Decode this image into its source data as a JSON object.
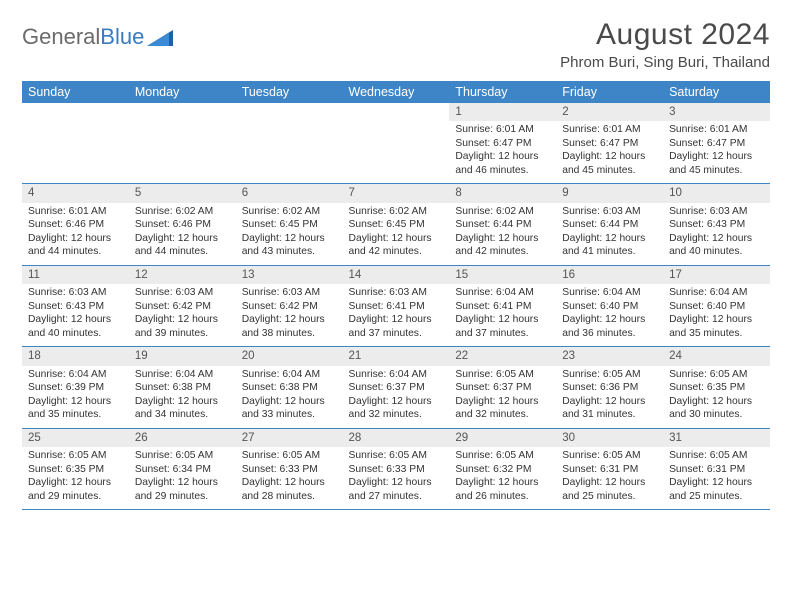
{
  "brand": {
    "part1": "General",
    "part2": "Blue"
  },
  "title": "August 2024",
  "location": "Phrom Buri, Sing Buri, Thailand",
  "dayHeaders": [
    "Sunday",
    "Monday",
    "Tuesday",
    "Wednesday",
    "Thursday",
    "Friday",
    "Saturday"
  ],
  "colors": {
    "headerBg": "#3d85c6",
    "headerText": "#ffffff",
    "rowStripe": "#ececec",
    "borderColor": "#3d85c6",
    "bodyText": "#333333",
    "logoGray": "#6b6b6b",
    "logoBlue": "#3a7bbf"
  },
  "weeks": [
    [
      {
        "n": "",
        "lines": []
      },
      {
        "n": "",
        "lines": []
      },
      {
        "n": "",
        "lines": []
      },
      {
        "n": "",
        "lines": []
      },
      {
        "n": "1",
        "lines": [
          "Sunrise: 6:01 AM",
          "Sunset: 6:47 PM",
          "Daylight: 12 hours and 46 minutes."
        ]
      },
      {
        "n": "2",
        "lines": [
          "Sunrise: 6:01 AM",
          "Sunset: 6:47 PM",
          "Daylight: 12 hours and 45 minutes."
        ]
      },
      {
        "n": "3",
        "lines": [
          "Sunrise: 6:01 AM",
          "Sunset: 6:47 PM",
          "Daylight: 12 hours and 45 minutes."
        ]
      }
    ],
    [
      {
        "n": "4",
        "lines": [
          "Sunrise: 6:01 AM",
          "Sunset: 6:46 PM",
          "Daylight: 12 hours and 44 minutes."
        ]
      },
      {
        "n": "5",
        "lines": [
          "Sunrise: 6:02 AM",
          "Sunset: 6:46 PM",
          "Daylight: 12 hours and 44 minutes."
        ]
      },
      {
        "n": "6",
        "lines": [
          "Sunrise: 6:02 AM",
          "Sunset: 6:45 PM",
          "Daylight: 12 hours and 43 minutes."
        ]
      },
      {
        "n": "7",
        "lines": [
          "Sunrise: 6:02 AM",
          "Sunset: 6:45 PM",
          "Daylight: 12 hours and 42 minutes."
        ]
      },
      {
        "n": "8",
        "lines": [
          "Sunrise: 6:02 AM",
          "Sunset: 6:44 PM",
          "Daylight: 12 hours and 42 minutes."
        ]
      },
      {
        "n": "9",
        "lines": [
          "Sunrise: 6:03 AM",
          "Sunset: 6:44 PM",
          "Daylight: 12 hours and 41 minutes."
        ]
      },
      {
        "n": "10",
        "lines": [
          "Sunrise: 6:03 AM",
          "Sunset: 6:43 PM",
          "Daylight: 12 hours and 40 minutes."
        ]
      }
    ],
    [
      {
        "n": "11",
        "lines": [
          "Sunrise: 6:03 AM",
          "Sunset: 6:43 PM",
          "Daylight: 12 hours and 40 minutes."
        ]
      },
      {
        "n": "12",
        "lines": [
          "Sunrise: 6:03 AM",
          "Sunset: 6:42 PM",
          "Daylight: 12 hours and 39 minutes."
        ]
      },
      {
        "n": "13",
        "lines": [
          "Sunrise: 6:03 AM",
          "Sunset: 6:42 PM",
          "Daylight: 12 hours and 38 minutes."
        ]
      },
      {
        "n": "14",
        "lines": [
          "Sunrise: 6:03 AM",
          "Sunset: 6:41 PM",
          "Daylight: 12 hours and 37 minutes."
        ]
      },
      {
        "n": "15",
        "lines": [
          "Sunrise: 6:04 AM",
          "Sunset: 6:41 PM",
          "Daylight: 12 hours and 37 minutes."
        ]
      },
      {
        "n": "16",
        "lines": [
          "Sunrise: 6:04 AM",
          "Sunset: 6:40 PM",
          "Daylight: 12 hours and 36 minutes."
        ]
      },
      {
        "n": "17",
        "lines": [
          "Sunrise: 6:04 AM",
          "Sunset: 6:40 PM",
          "Daylight: 12 hours and 35 minutes."
        ]
      }
    ],
    [
      {
        "n": "18",
        "lines": [
          "Sunrise: 6:04 AM",
          "Sunset: 6:39 PM",
          "Daylight: 12 hours and 35 minutes."
        ]
      },
      {
        "n": "19",
        "lines": [
          "Sunrise: 6:04 AM",
          "Sunset: 6:38 PM",
          "Daylight: 12 hours and 34 minutes."
        ]
      },
      {
        "n": "20",
        "lines": [
          "Sunrise: 6:04 AM",
          "Sunset: 6:38 PM",
          "Daylight: 12 hours and 33 minutes."
        ]
      },
      {
        "n": "21",
        "lines": [
          "Sunrise: 6:04 AM",
          "Sunset: 6:37 PM",
          "Daylight: 12 hours and 32 minutes."
        ]
      },
      {
        "n": "22",
        "lines": [
          "Sunrise: 6:05 AM",
          "Sunset: 6:37 PM",
          "Daylight: 12 hours and 32 minutes."
        ]
      },
      {
        "n": "23",
        "lines": [
          "Sunrise: 6:05 AM",
          "Sunset: 6:36 PM",
          "Daylight: 12 hours and 31 minutes."
        ]
      },
      {
        "n": "24",
        "lines": [
          "Sunrise: 6:05 AM",
          "Sunset: 6:35 PM",
          "Daylight: 12 hours and 30 minutes."
        ]
      }
    ],
    [
      {
        "n": "25",
        "lines": [
          "Sunrise: 6:05 AM",
          "Sunset: 6:35 PM",
          "Daylight: 12 hours and 29 minutes."
        ]
      },
      {
        "n": "26",
        "lines": [
          "Sunrise: 6:05 AM",
          "Sunset: 6:34 PM",
          "Daylight: 12 hours and 29 minutes."
        ]
      },
      {
        "n": "27",
        "lines": [
          "Sunrise: 6:05 AM",
          "Sunset: 6:33 PM",
          "Daylight: 12 hours and 28 minutes."
        ]
      },
      {
        "n": "28",
        "lines": [
          "Sunrise: 6:05 AM",
          "Sunset: 6:33 PM",
          "Daylight: 12 hours and 27 minutes."
        ]
      },
      {
        "n": "29",
        "lines": [
          "Sunrise: 6:05 AM",
          "Sunset: 6:32 PM",
          "Daylight: 12 hours and 26 minutes."
        ]
      },
      {
        "n": "30",
        "lines": [
          "Sunrise: 6:05 AM",
          "Sunset: 6:31 PM",
          "Daylight: 12 hours and 25 minutes."
        ]
      },
      {
        "n": "31",
        "lines": [
          "Sunrise: 6:05 AM",
          "Sunset: 6:31 PM",
          "Daylight: 12 hours and 25 minutes."
        ]
      }
    ]
  ]
}
